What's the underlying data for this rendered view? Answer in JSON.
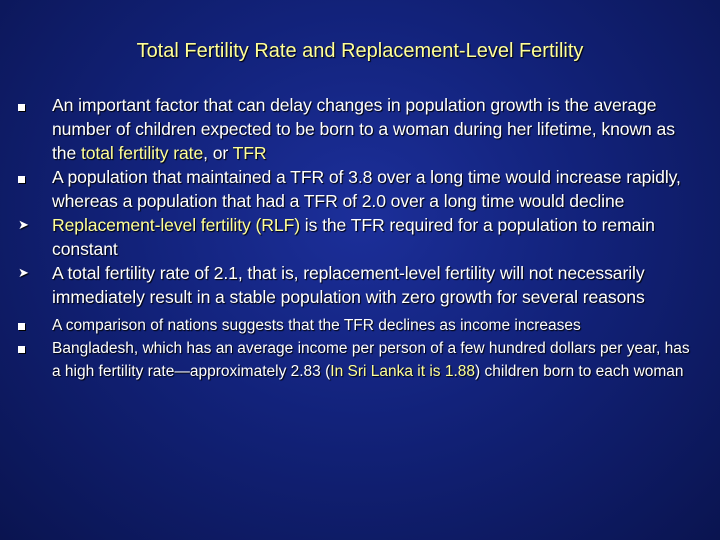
{
  "slide": {
    "title": "Total Fertility Rate and Replacement-Level Fertility",
    "bullets": [
      {
        "marker": "square-bullet",
        "parts": [
          "An important factor that can delay changes in population growth is the average number of children expected to be born to a woman during her lifetime, known as the ",
          "total fertility rate",
          ", or ",
          "TFR"
        ]
      },
      {
        "marker": "square-bullet",
        "text": "A population that maintained a TFR of 3.8 over a long time would increase rapidly, whereas a population that had a TFR of 2.0 over a long time would decline"
      },
      {
        "marker": "arrow-bullet",
        "parts": [
          "Replacement-level fertility (RLF)",
          " is the TFR required for a population to remain constant"
        ]
      },
      {
        "marker": "arrow-bullet",
        "text": "A total fertility rate of 2.1, that is, replacement-level fertility will not necessarily immediately result in a stable population with zero growth for several reasons"
      },
      {
        "marker": "square-bullet",
        "text": "A comparison of nations suggests that the TFR declines as income increases"
      },
      {
        "marker": "square-bullet",
        "parts": [
          "Bangladesh, which has an average income per person of a few hundred dollars per year, has a high fertility rate—approximately 2.83 (",
          "In Sri Lanka it is 1.88",
          ") children born to each woman"
        ]
      }
    ],
    "colors": {
      "background": "#12227a",
      "title": "#ffff99",
      "highlight": "#ffff99",
      "text": "#ffffff"
    }
  }
}
